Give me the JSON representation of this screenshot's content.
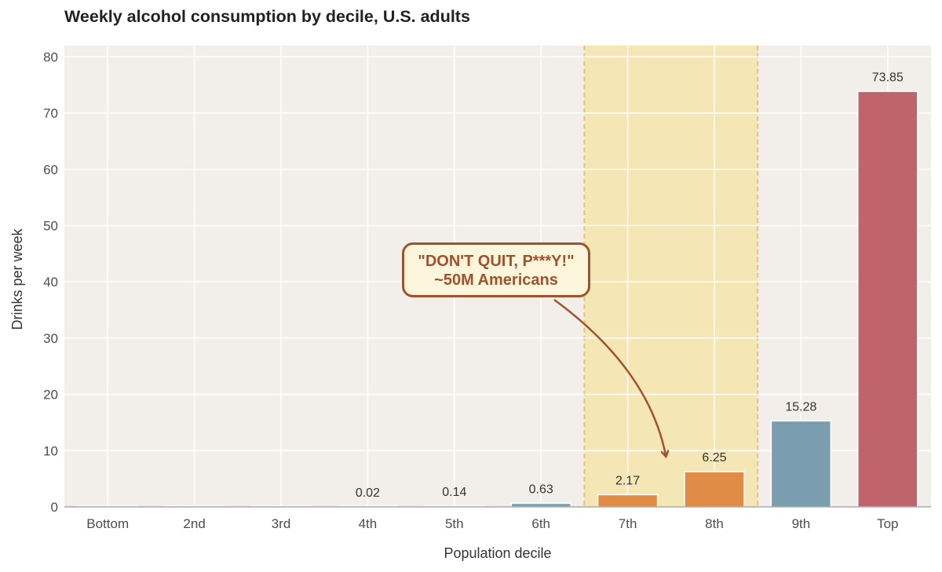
{
  "chart_data": {
    "type": "bar",
    "title": "Weekly alcohol consumption by decile, U.S. adults",
    "xlabel": "Population decile",
    "ylabel": "Drinks per week",
    "categories": [
      "Bottom",
      "2nd",
      "3rd",
      "4th",
      "5th",
      "6th",
      "7th",
      "8th",
      "9th",
      "Top"
    ],
    "values": [
      0,
      0,
      0,
      0.02,
      0.14,
      0.63,
      2.17,
      6.25,
      15.28,
      73.85
    ],
    "data_labels": [
      "",
      "",
      "",
      "0.02",
      "0.14",
      "0.63",
      "2.17",
      "6.25",
      "15.28",
      "73.85"
    ],
    "bar_colors": [
      "#7a9db0",
      "#7a9db0",
      "#7a9db0",
      "#7a9db0",
      "#7a9db0",
      "#7a9db0",
      "#e08c47",
      "#e08c47",
      "#7a9db0",
      "#c0646b"
    ],
    "ylim": [
      0,
      82
    ],
    "yticks": [
      0,
      10,
      20,
      30,
      40,
      50,
      60,
      70,
      80
    ],
    "grid": true,
    "plot_background": "#f2efea",
    "highlight_range": [
      "7th",
      "8th"
    ],
    "highlight_color": "#f5e3a3",
    "annotation": {
      "lines": [
        "\"DON'T QUIT, P***Y!\"",
        "~50M Americans"
      ],
      "target": "7th-8th",
      "color": "#a0522d",
      "background": "#fdf5dc"
    }
  }
}
